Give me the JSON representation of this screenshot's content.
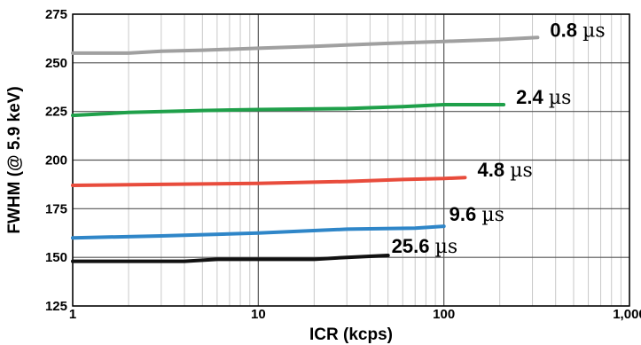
{
  "chart_data": {
    "type": "line",
    "title": "",
    "xlabel": "ICR (kcps)",
    "ylabel": "FWHM (@ 5.9 keV)",
    "xscale": "log",
    "xlim": [
      1,
      1000
    ],
    "ylim": [
      125,
      275
    ],
    "x_ticks": [
      1,
      10,
      100,
      1000
    ],
    "x_tick_labels": [
      "1",
      "10",
      "100",
      "1,000"
    ],
    "y_ticks": [
      125,
      150,
      175,
      200,
      225,
      250,
      275
    ],
    "y_tick_labels": [
      "125",
      "150",
      "175",
      "200",
      "225",
      "250",
      "275"
    ],
    "grid": true,
    "legend": "none",
    "series": [
      {
        "name": "0.8 µs",
        "label_value": "0.8",
        "label_unit": "µs",
        "color": "#a0a0a0",
        "points": [
          [
            1,
            255
          ],
          [
            2,
            255
          ],
          [
            3,
            256
          ],
          [
            5,
            256.5
          ],
          [
            10,
            257.5
          ],
          [
            20,
            258.5
          ],
          [
            50,
            260
          ],
          [
            100,
            261
          ],
          [
            200,
            262
          ],
          [
            320,
            263
          ]
        ]
      },
      {
        "name": "2.4 µs",
        "label_value": "2.4",
        "label_unit": "µs",
        "color": "#1fa04a",
        "points": [
          [
            1,
            223
          ],
          [
            2,
            224.5
          ],
          [
            5,
            225.5
          ],
          [
            10,
            226
          ],
          [
            30,
            226.5
          ],
          [
            60,
            227.5
          ],
          [
            100,
            228.5
          ],
          [
            210,
            228.5
          ]
        ]
      },
      {
        "name": "4.8 µs",
        "label_value": "4.8",
        "label_unit": "µs",
        "color": "#e84c3c",
        "points": [
          [
            1,
            187
          ],
          [
            3,
            187.5
          ],
          [
            10,
            188
          ],
          [
            30,
            189
          ],
          [
            60,
            190
          ],
          [
            100,
            190.5
          ],
          [
            130,
            191
          ]
        ]
      },
      {
        "name": "9.6 µs",
        "label_value": "9.6",
        "label_unit": "µs",
        "color": "#2f86c8",
        "points": [
          [
            1,
            160
          ],
          [
            3,
            161
          ],
          [
            10,
            162.5
          ],
          [
            30,
            164.5
          ],
          [
            70,
            165
          ],
          [
            100,
            166
          ]
        ]
      },
      {
        "name": "25.6 µs",
        "label_value": "25.6",
        "label_unit": "µs",
        "color": "#111111",
        "points": [
          [
            1,
            148
          ],
          [
            4,
            148
          ],
          [
            6,
            149
          ],
          [
            10,
            149
          ],
          [
            20,
            149
          ],
          [
            30,
            150
          ],
          [
            50,
            151
          ]
        ]
      }
    ]
  }
}
